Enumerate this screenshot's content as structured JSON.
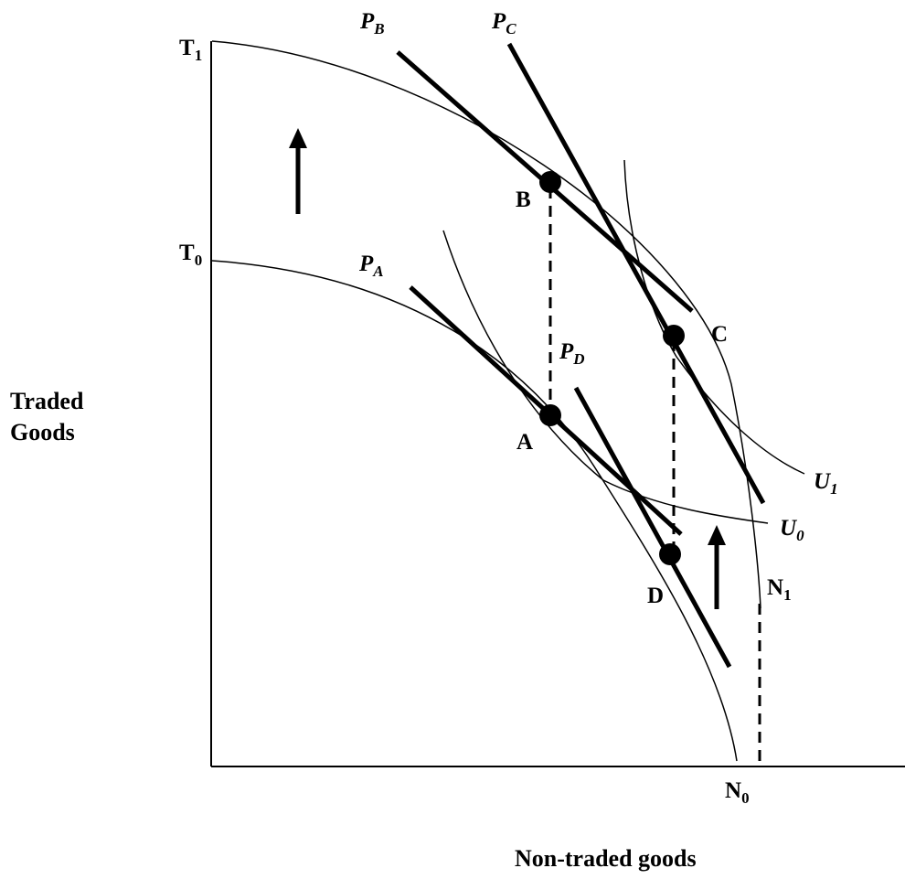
{
  "axes": {
    "y_title_line1": "Traded",
    "y_title_line2": "Goods",
    "x_title": "Non-traded goods"
  },
  "frontier_labels": {
    "t1": {
      "main": "T",
      "sub": "1"
    },
    "t0": {
      "main": "T",
      "sub": "0"
    },
    "n1": {
      "main": "N",
      "sub": "1"
    },
    "n0": {
      "main": "N",
      "sub": "0"
    }
  },
  "points": {
    "a": "A",
    "b": "B",
    "c": "C",
    "d": "D"
  },
  "price_lines": {
    "pa": {
      "main": "P",
      "sub": "A"
    },
    "pb": {
      "main": "P",
      "sub": "B"
    },
    "pc": {
      "main": "P",
      "sub": "C"
    },
    "pd": {
      "main": "P",
      "sub": "D"
    }
  },
  "indifference": {
    "u0": {
      "main": "U",
      "sub": "0"
    },
    "u1": {
      "main": "U",
      "sub": "1"
    }
  },
  "colors": {
    "ink": "#000000",
    "background": "#ffffff"
  }
}
